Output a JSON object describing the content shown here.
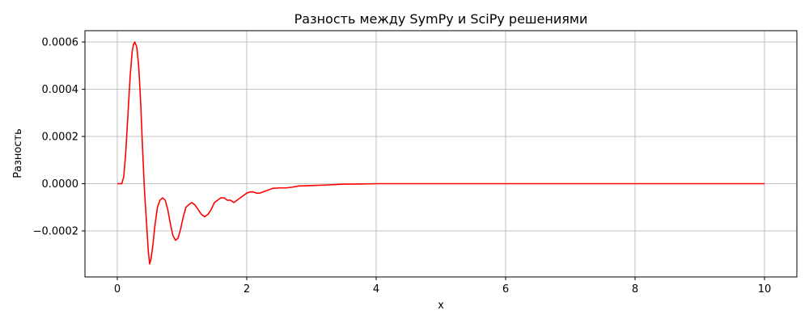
{
  "chart_data": {
    "type": "line",
    "title": "Разность между SymPy и SciPy решениями",
    "xlabel": "x",
    "ylabel": "Разность",
    "xlim": [
      -0.5,
      10.5
    ],
    "ylim": [
      -0.000395,
      0.000648
    ],
    "xticks": [
      0,
      2,
      4,
      6,
      8,
      10
    ],
    "xtick_labels": [
      "0",
      "2",
      "4",
      "6",
      "8",
      "10"
    ],
    "yticks": [
      -0.0002,
      0.0,
      0.0002,
      0.0004,
      0.0006
    ],
    "ytick_labels": [
      "−0.0002",
      "0.0000",
      "0.0002",
      "0.0004",
      "0.0006"
    ],
    "grid": true,
    "series": [
      {
        "color": "#ff0000",
        "x": [
          0,
          0.07,
          0.1,
          0.13,
          0.17,
          0.2,
          0.23,
          0.25,
          0.27,
          0.3,
          0.33,
          0.36,
          0.39,
          0.42,
          0.45,
          0.48,
          0.5,
          0.52,
          0.55,
          0.58,
          0.62,
          0.66,
          0.7,
          0.74,
          0.78,
          0.82,
          0.86,
          0.9,
          0.94,
          0.98,
          1.02,
          1.06,
          1.1,
          1.15,
          1.2,
          1.25,
          1.3,
          1.35,
          1.4,
          1.45,
          1.5,
          1.55,
          1.6,
          1.65,
          1.7,
          1.75,
          1.8,
          1.85,
          1.9,
          1.95,
          2.0,
          2.05,
          2.1,
          2.15,
          2.2,
          2.25,
          2.3,
          2.4,
          2.5,
          2.6,
          2.7,
          2.8,
          3.0,
          3.2,
          3.5,
          3.8,
          4.0,
          4.5,
          5.0,
          6.0,
          7.0,
          8.0,
          9.0,
          10.0
        ],
        "y": [
          0,
          0.0,
          3e-05,
          0.00013,
          0.00032,
          0.00046,
          0.00056,
          0.00059,
          0.0006,
          0.00058,
          0.0005,
          0.00035,
          0.00015,
          -3e-05,
          -0.00016,
          -0.00029,
          -0.00034,
          -0.00032,
          -0.00026,
          -0.00018,
          -0.0001,
          -7e-05,
          -6e-05,
          -7e-05,
          -0.00011,
          -0.00017,
          -0.00022,
          -0.00024,
          -0.00023,
          -0.00019,
          -0.00014,
          -0.0001,
          -9e-05,
          -8e-05,
          -9e-05,
          -0.00011,
          -0.00013,
          -0.00014,
          -0.00013,
          -0.00011,
          -8e-05,
          -7e-05,
          -6e-05,
          -6e-05,
          -7e-05,
          -7e-05,
          -8e-05,
          -7e-05,
          -6e-05,
          -5e-05,
          -4e-05,
          -3.5e-05,
          -3.5e-05,
          -4e-05,
          -4e-05,
          -3.5e-05,
          -3e-05,
          -2e-05,
          -1.8e-05,
          -1.8e-05,
          -1.5e-05,
          -1e-05,
          -8e-06,
          -6e-06,
          -2e-06,
          -1e-06,
          0,
          0,
          0,
          0,
          0,
          0,
          0,
          0
        ]
      }
    ]
  }
}
